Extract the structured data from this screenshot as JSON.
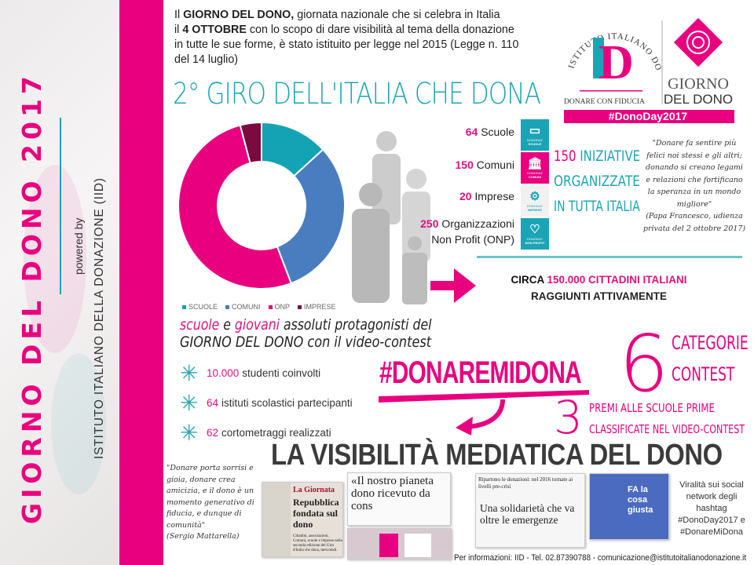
{
  "sidebar": {
    "title": "GIORNO DEL DONO 2017",
    "powered": "powered by",
    "org": "ISTITUTO ITALIANO DELLA DONAZIONE (IID)",
    "accent": "#e8007f"
  },
  "intro": {
    "l1a": "Il ",
    "l1b": "GIORNO DEL DONO,",
    "l1c": " giornata nazionale che si celebra in Italia",
    "l2a": "il ",
    "l2b": "4 OTTOBRE",
    "l2c": " con lo scopo di dare visibilità al tema della donazione",
    "l3": "in tutte le sue forme, è stato istituito per legge nel 2015 (Legge n. 110",
    "l4": "del 14 luglio)"
  },
  "giro_title": "2° GIRO DELL'ITALIA CHE DONA",
  "logo": {
    "arc": "ISTITUTO ITALIANO DONAZIONE",
    "letters": "ID",
    "tagline": "DONARE CON FIDUCIA",
    "g1": "GIORNO",
    "g2": "DEL DONO",
    "hashtag": "#DonoDay2017"
  },
  "chart_data": {
    "type": "pie",
    "donut": true,
    "categories": [
      "SCUOLE",
      "COMUNI",
      "ONP",
      "IMPRESE"
    ],
    "values": [
      64,
      150,
      250,
      20
    ],
    "colors": [
      "#13a3b4",
      "#4a7dbf",
      "#e8007f",
      "#7a0a40"
    ],
    "legend": "bottom"
  },
  "counts": [
    {
      "n": "64",
      "label": "Scuole"
    },
    {
      "n": "150",
      "label": "Comuni"
    },
    {
      "n": "20",
      "label": "Imprese"
    },
    {
      "n": "250",
      "label": "Organizzazioni",
      "label2": "Non Profit (ONP)"
    }
  ],
  "tiles": [
    {
      "icon": "book-icon",
      "glyph": "▭",
      "brand": "DONODAY",
      "label": "SCUOLE",
      "color": "#1ba4b6"
    },
    {
      "icon": "building-icon",
      "glyph": "🏛",
      "brand": "DONODAY",
      "label": "COMUNI",
      "color": "#e8007f"
    },
    {
      "icon": "gears-icon",
      "glyph": "⚙",
      "brand": "DONODAY",
      "label": "IMPRESE",
      "color": "#f1f1f1"
    },
    {
      "icon": "heart-icon",
      "glyph": "♡",
      "brand": "DONODAY",
      "label": "NON PROFIT",
      "color": "#1ba4b6"
    }
  ],
  "iniziative": {
    "n": "150",
    "l1": " INIZIATIVE",
    "l2": "ORGANIZZATE",
    "l3": "IN TUTTA ITALIA"
  },
  "quote1": {
    "text": "\"Donare fa sentire più felici noi stessi e gli altri; donando si creano legami e relazioni che fortificano la speranza in un mondo migliore\"",
    "author": "(Papa Francesco, udienza privata del 2 ottobre 2017)"
  },
  "circa": {
    "a": "CIRCA ",
    "n": "150.000",
    "b": " CITTADINI ITALIANI",
    "l2": "RAGGIUNTI ATTIVAMENTE"
  },
  "protag": {
    "w1": "scuole",
    "w2": " e ",
    "w3": "giovani",
    "w4": " assoluti protagonisti del",
    "l2": "GIORNO DEL DONO con il video-contest"
  },
  "bullets": [
    {
      "n": "10.000",
      "t": "studenti coinvolti"
    },
    {
      "n": "64",
      "t": "istituti scolastici partecipanti"
    },
    {
      "n": "62",
      "t": "cortometraggi realizzati"
    }
  ],
  "contest": {
    "hashtag": "#DONAREMIDONA",
    "six": "6",
    "cat1": "CATEGORIE",
    "cat2": "CONTEST",
    "three": "3",
    "premi1": "PREMI ALLE SCUOLE PRIME",
    "premi2": "CLASSIFICATE NEL VIDEO-CONTEST"
  },
  "visib_title": "LA VISIBILITÀ MEDIATICA DEL DONO",
  "quote2": {
    "text": "\"Donare porta sorrisi e gioia, donare crea amicizia, e il dono è un momento generativo di fiducia, e dunque di comunità\"",
    "author": "(Sergio Mattarella)"
  },
  "clips": {
    "c1a": "La Giornata",
    "c1b": "Repubblica fondata sul dono",
    "c1c": "Cittadini, associazioni, Comuni, scuole e imprese nella seconda edizione del Giro d'Italia che dona, mercoledì.",
    "c2": "«Il nostro pianeta dono ricevuto da cons",
    "c3a": "Ripartono le donazioni: nel 2016 tornate ai livelli pre-crisi",
    "c3b": "Una solidarietà che va oltre le emergenze",
    "c4": "FA la cosa giusta"
  },
  "viral": "Viralità sui social network degli hashtag #DonoDay2017 e #DonareMiDona",
  "footer": "Per informazioni: IID - Tel. 02.87390788 - comunicazione@istitutoitalianodonazione.it"
}
